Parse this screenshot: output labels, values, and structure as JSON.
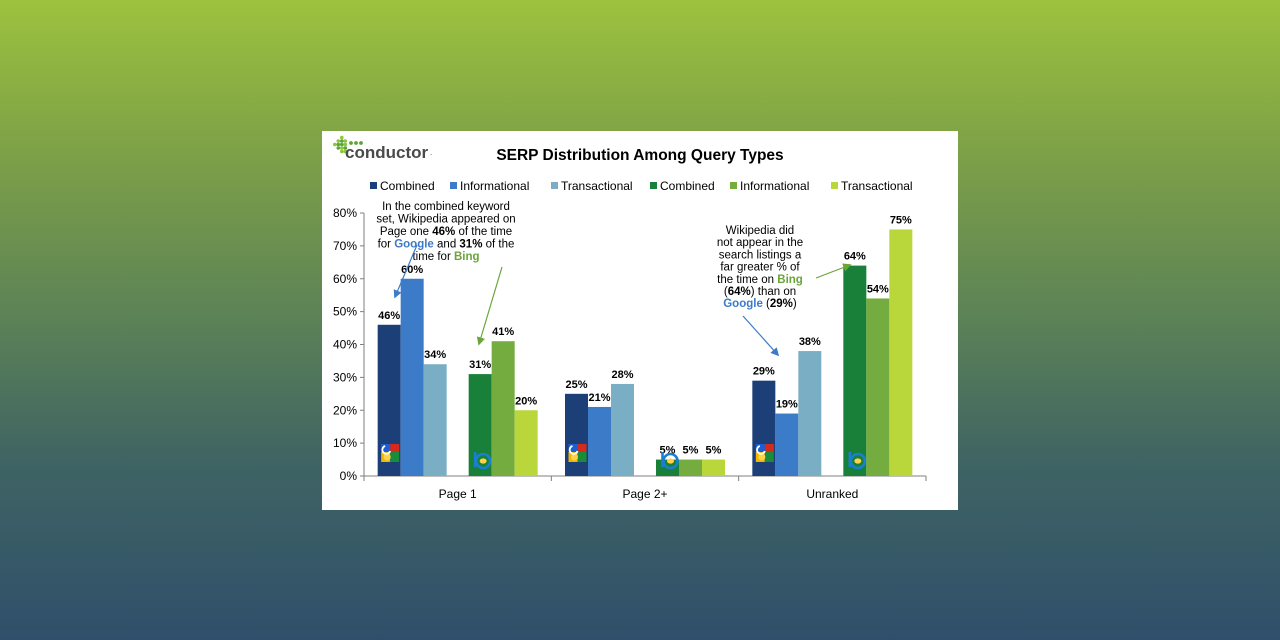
{
  "logo": {
    "text": "conductor",
    "trademark": "."
  },
  "chart_data": {
    "type": "bar",
    "title": "SERP Distribution Among Query Types",
    "categories": [
      "Page 1",
      "Page 2+",
      "Unranked"
    ],
    "ylim": [
      0,
      80
    ],
    "yticks": [
      "0%",
      "10%",
      "20%",
      "30%",
      "40%",
      "50%",
      "60%",
      "70%",
      "80%"
    ],
    "grid": false,
    "legend_position": "top",
    "series": [
      {
        "name": "Combined",
        "engine": "google",
        "color": "#1d3f77",
        "values": [
          46,
          25,
          29
        ],
        "labels": [
          "46%",
          "25%",
          "29%"
        ]
      },
      {
        "name": "Informational",
        "engine": "google",
        "color": "#3b7bc8",
        "values": [
          60,
          21,
          19
        ],
        "labels": [
          "60%",
          "21%",
          "19%"
        ]
      },
      {
        "name": "Transactional",
        "engine": "google",
        "color": "#79aec5",
        "values": [
          34,
          28,
          38
        ],
        "labels": [
          "34%",
          "28%",
          "38%"
        ]
      },
      {
        "name": "Combined",
        "engine": "bing",
        "color": "#188038",
        "values": [
          31,
          5,
          64
        ],
        "labels": [
          "31%",
          "5%",
          "64%"
        ]
      },
      {
        "name": "Informational",
        "engine": "bing",
        "color": "#74ac3f",
        "values": [
          41,
          5,
          54
        ],
        "labels": [
          "41%",
          "5%",
          "54%"
        ]
      },
      {
        "name": "Transactional",
        "engine": "bing",
        "color": "#b9d63a",
        "values": [
          20,
          5,
          75
        ],
        "labels": [
          "20%",
          "5%",
          "75%"
        ]
      }
    ],
    "annotations": [
      {
        "lines": [
          [
            {
              "t": "In the combined keyword"
            }
          ],
          [
            {
              "t": "set, Wikipedia appeared on"
            }
          ],
          [
            {
              "t": "Page one "
            },
            {
              "t": "46%",
              "b": true
            },
            {
              "t": " of the time"
            }
          ],
          [
            {
              "t": "for "
            },
            {
              "t": "Google",
              "b": true,
              "c": "#3b7bc8"
            },
            {
              "t": " and "
            },
            {
              "t": "31%",
              "b": true
            },
            {
              "t": " of the"
            }
          ],
          [
            {
              "t": "time for "
            },
            {
              "t": "Bing",
              "b": true,
              "c": "#6aa53a"
            }
          ]
        ]
      },
      {
        "lines": [
          [
            {
              "t": "Wikipedia did"
            }
          ],
          [
            {
              "t": "not appear in the"
            }
          ],
          [
            {
              "t": "search listings a"
            }
          ],
          [
            {
              "t": "far greater % of"
            }
          ],
          [
            {
              "t": "the time on "
            },
            {
              "t": "Bing",
              "b": true,
              "c": "#6aa53a"
            }
          ],
          [
            {
              "t": "("
            },
            {
              "t": "64%",
              "b": true
            },
            {
              "t": ") than on"
            }
          ],
          [
            {
              "t": "Google",
              "b": true,
              "c": "#3b7bc8"
            },
            {
              "t": " ("
            },
            {
              "t": "29%",
              "b": true
            },
            {
              "t": ")"
            }
          ]
        ]
      }
    ],
    "engine_icons": [
      "google-icon",
      "bing-icon"
    ]
  }
}
